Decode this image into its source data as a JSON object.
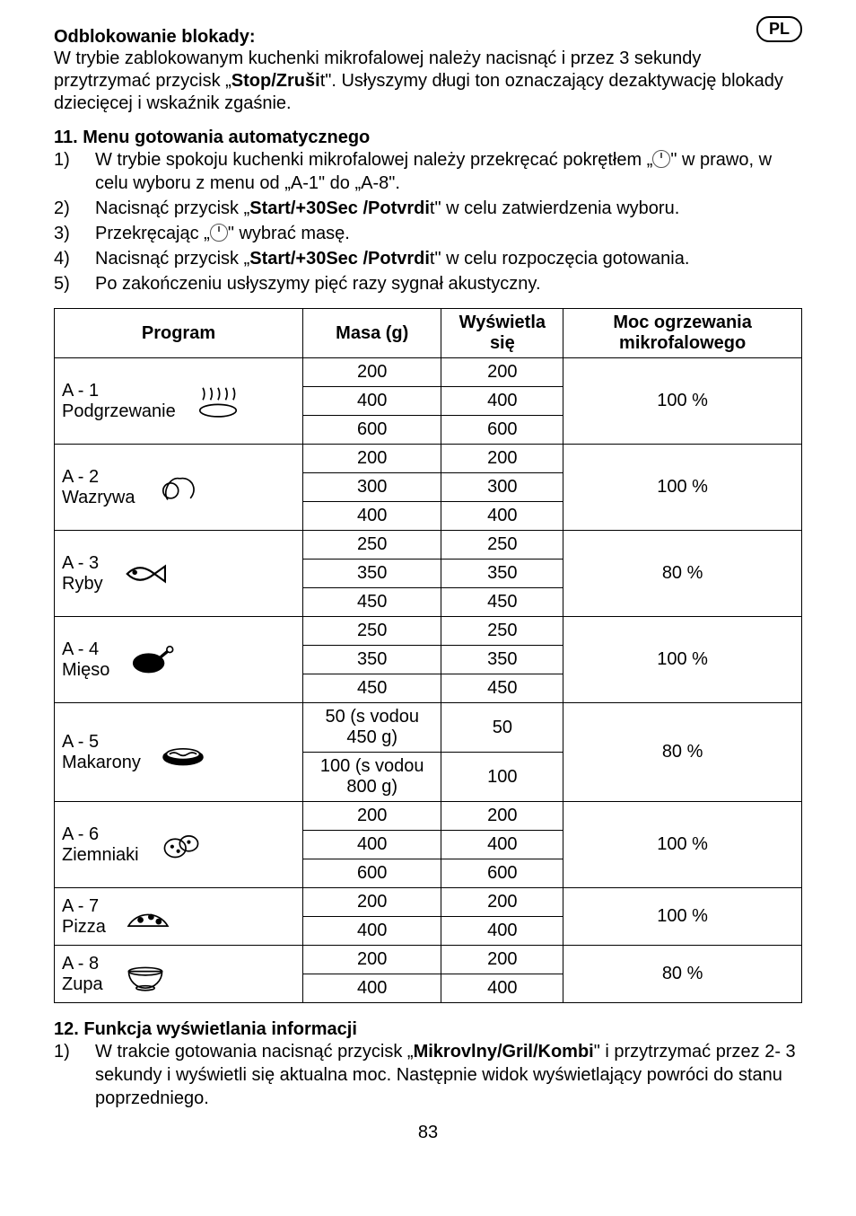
{
  "badge": "PL",
  "unlock": {
    "heading": "Odblokowanie blokady:",
    "text_pre": "W trybie zablokowanym kuchenki mikrofalowej należy nacisnąć i przez 3 sekundy przytrzymać przycisk „",
    "text_bold": "Stop/Zruši",
    "text_post": "t\". Usłyszymy długi ton oznaczający dezaktywację blokady dziecięcej i wskaźnik zgaśnie."
  },
  "sec11": {
    "heading": "11. Menu gotowania automatycznego",
    "items": [
      {
        "n": "1)",
        "pre": "W trybie spokoju kuchenki mikrofalowej należy przekręcać pokrętłem „",
        "post": "\" w prawo, w celu wyboru z menu od „A-1\" do „A-8\".",
        "knob": true
      },
      {
        "n": "2)",
        "pre": "Nacisnąć przycisk „",
        "bold": "Start/+30Sec /Potvrdi",
        "post": "t\" w celu zatwierdzenia wyboru."
      },
      {
        "n": "3)",
        "pre": "Przekręcając „",
        "post": "\" wybrać masę.",
        "knob": true
      },
      {
        "n": "4)",
        "pre": "Nacisnąć przycisk „",
        "bold": "Start/+30Sec /Potvrdi",
        "post": "t\" w celu rozpoczęcia gotowania."
      },
      {
        "n": "5)",
        "pre": "Po zakończeniu usłyszymy pięć razy sygnał akustyczny."
      }
    ]
  },
  "table": {
    "headers": {
      "program": "Program",
      "mass": "Masa (g)",
      "display": "Wyświetla się",
      "power": "Moc ogrzewania mikrofalowego"
    },
    "rows": [
      {
        "label_a": "A - 1",
        "label_b": "Podgrzewanie",
        "icon": "reheat",
        "masses": [
          "200",
          "400",
          "600"
        ],
        "displays": [
          "200",
          "400",
          "600"
        ],
        "power": "100 %"
      },
      {
        "label_a": "A - 2",
        "label_b": "Wazrywa",
        "icon": "veg",
        "masses": [
          "200",
          "300",
          "400"
        ],
        "displays": [
          "200",
          "300",
          "400"
        ],
        "power": "100 %"
      },
      {
        "label_a": "A - 3",
        "label_b": "Ryby",
        "icon": "fish",
        "masses": [
          "250",
          "350",
          "450"
        ],
        "displays": [
          "250",
          "350",
          "450"
        ],
        "power": "80 %"
      },
      {
        "label_a": "A - 4",
        "label_b": "Mięso",
        "icon": "meat",
        "masses": [
          "250",
          "350",
          "450"
        ],
        "displays": [
          "250",
          "350",
          "450"
        ],
        "power": "100 %"
      },
      {
        "label_a": "A - 5",
        "label_b": "Makarony",
        "icon": "pasta",
        "masses": [
          "50 (s vodou 450 g)",
          "100 (s vodou 800 g)"
        ],
        "displays": [
          "50",
          "100"
        ],
        "power": "80 %"
      },
      {
        "label_a": "A - 6",
        "label_b": "Ziemniaki",
        "icon": "potato",
        "masses": [
          "200",
          "400",
          "600"
        ],
        "displays": [
          "200",
          "400",
          "600"
        ],
        "power": "100 %"
      },
      {
        "label_a": "A - 7",
        "label_b": "Pizza",
        "icon": "pizza",
        "masses": [
          "200",
          "400"
        ],
        "displays": [
          "200",
          "400"
        ],
        "power": "100 %"
      },
      {
        "label_a": "A - 8",
        "label_b": "Zupa",
        "icon": "soup",
        "masses": [
          "200",
          "400"
        ],
        "displays": [
          "200",
          "400"
        ],
        "power": "80 %"
      }
    ]
  },
  "sec12": {
    "heading": "12. Funkcja wyświetlania informacji",
    "item": {
      "n": "1)",
      "pre": "W trakcie gotowania nacisnąć przycisk „",
      "bold": "Mikrovlny/Gril/Kombi",
      "post": "\" i przytrzymać przez 2- 3 sekundy i wyświetli się aktualna moc. Następnie widok wyświetlający powróci do stanu poprzedniego."
    }
  },
  "pageNumber": "83"
}
